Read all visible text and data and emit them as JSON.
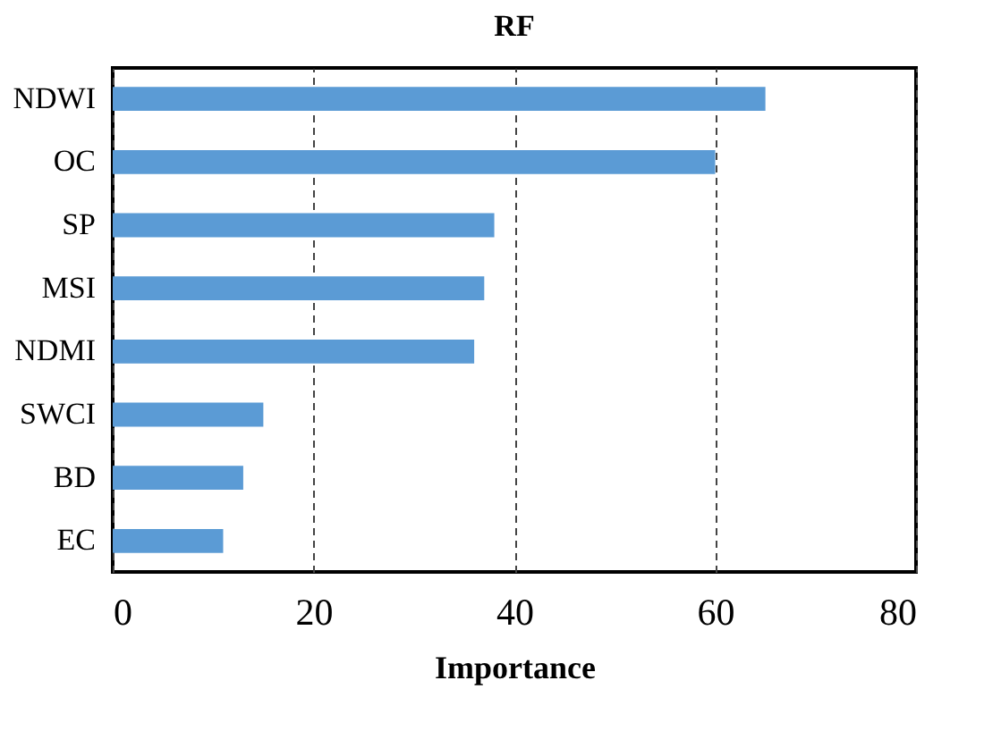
{
  "chart_data": {
    "type": "bar",
    "orientation": "horizontal",
    "title": "RF",
    "xlabel": "Importance",
    "categories": [
      "NDWI",
      "OC",
      "SP",
      "MSI",
      "NDMI",
      "SWCI",
      "BD",
      "EC"
    ],
    "values": [
      65,
      60,
      38,
      37,
      36,
      15,
      13,
      11
    ],
    "color": "#5b9bd5",
    "xlim": [
      0,
      80
    ],
    "xticks": [
      0,
      20,
      40,
      60,
      80
    ],
    "grid": "x"
  }
}
